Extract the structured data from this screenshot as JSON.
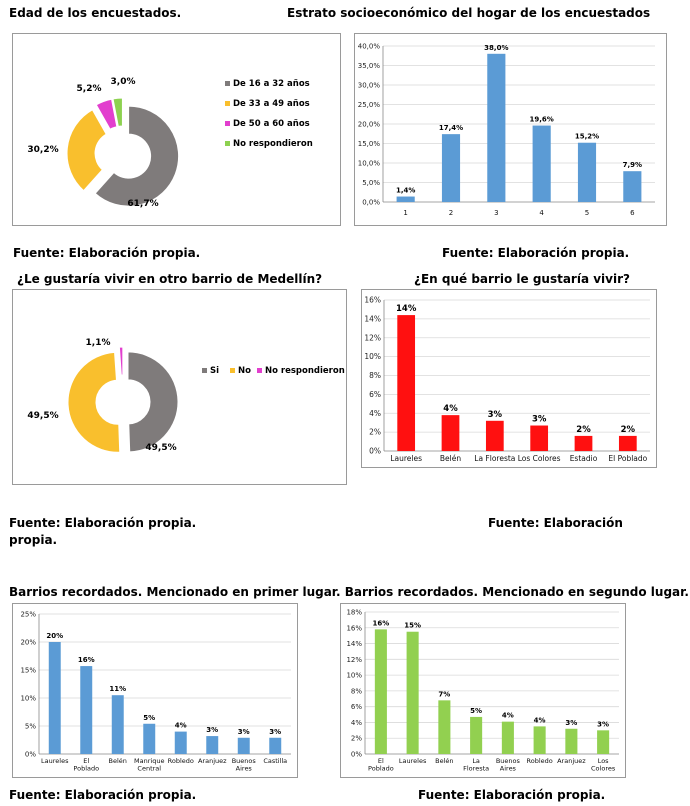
{
  "headings": {
    "edad": "Edad de los encuestados.",
    "estrato": "Estrato socioeconómico del hogar de los encuestados",
    "gustaria": "¿Le gustaría vivir en otro barrio de Medellín?",
    "que_barrio": "¿En qué barrio le gustaría vivir?",
    "recordados": "Barrios recordados. Mencionado en primer lugar. Barrios recordados. Mencionado en segundo lugar."
  },
  "fuentes": {
    "f1": "Fuente: Elaboración propia.",
    "f2": "Fuente: Elaboración propia.",
    "f3a": "Fuente: Elaboración propia.",
    "f3b": "propia.",
    "f4": "Fuente: Elaboración",
    "f5": "Fuente: Elaboración propia.",
    "f6": "Fuente: Elaboración propia."
  },
  "chart_data": [
    {
      "id": "edad",
      "type": "pie",
      "labels": [
        "De 16 a 32 años",
        "De 33 a 49 años",
        "De 50 a 60 años",
        "No respondieron"
      ],
      "values": [
        61.7,
        30.2,
        5.2,
        3.0
      ],
      "value_labels": [
        "61,7%",
        "30,2%",
        "5,2%",
        "3,0%"
      ],
      "colors": [
        "#7f7b7b",
        "#f9bf2d",
        "#e23fce",
        "#8dd150"
      ],
      "legend": "right"
    },
    {
      "id": "estrato",
      "type": "bar",
      "categories": [
        "1",
        "2",
        "3",
        "4",
        "5",
        "6"
      ],
      "values": [
        1.4,
        17.4,
        38.0,
        19.6,
        15.2,
        7.9
      ],
      "value_labels": [
        "1,4%",
        "17,4%",
        "38,0%",
        "19,6%",
        "15,2%",
        "7,9%"
      ],
      "yticks": [
        "0,0%",
        "5,0%",
        "10,0%",
        "15,0%",
        "20,0%",
        "25,0%",
        "30,0%",
        "35,0%",
        "40,0%"
      ],
      "ylim": [
        0,
        40
      ],
      "color": "#5b9bd5",
      "grid": true
    },
    {
      "id": "gustaria",
      "type": "pie",
      "labels": [
        "Si",
        "No",
        "No respondieron"
      ],
      "values": [
        49.5,
        49.5,
        1.1
      ],
      "value_labels": [
        "49,5%",
        "49,5%",
        "1,1%"
      ],
      "colors": [
        "#7f7b7b",
        "#f9bf2d",
        "#e23fce"
      ],
      "legend": "right"
    },
    {
      "id": "que_barrio",
      "type": "bar",
      "categories": [
        "Laureles",
        "Belén",
        "La Floresta",
        "Los Colores",
        "Estadio",
        "El Poblado"
      ],
      "values": [
        14.4,
        3.8,
        3.2,
        2.7,
        1.6,
        1.6
      ],
      "value_labels": [
        "14%",
        "4%",
        "3%",
        "3%",
        "2%",
        "2%"
      ],
      "yticks": [
        "0%",
        "2%",
        "4%",
        "6%",
        "8%",
        "10%",
        "12%",
        "14%",
        "16%"
      ],
      "ylim": [
        0,
        16
      ],
      "color": "#ff1010",
      "grid": true
    },
    {
      "id": "primer",
      "type": "bar",
      "categories": [
        "Laureles",
        "El Poblado",
        "Belén",
        "Manrique Central",
        "Robledo",
        "Aranjuez",
        "Buenos Aires",
        "Castilla"
      ],
      "values": [
        20.0,
        15.7,
        10.5,
        5.4,
        4.0,
        3.2,
        2.9,
        2.9
      ],
      "value_labels": [
        "20%",
        "16%",
        "11%",
        "5%",
        "4%",
        "3%",
        "3%",
        "3%"
      ],
      "yticks": [
        "0%",
        "5%",
        "10%",
        "15%",
        "20%",
        "25%"
      ],
      "ylim": [
        0,
        25
      ],
      "color": "#5b9bd5",
      "grid": true
    },
    {
      "id": "segundo",
      "type": "bar",
      "categories": [
        "El Poblado",
        "Laureles",
        "Belén",
        "La Floresta",
        "Buenos Aires",
        "Robledo",
        "Aranjuez",
        "Los Colores"
      ],
      "values": [
        15.8,
        15.5,
        6.8,
        4.7,
        4.1,
        3.5,
        3.2,
        3.0
      ],
      "value_labels": [
        "16%",
        "15%",
        "7%",
        "5%",
        "4%",
        "4%",
        "3%",
        "3%"
      ],
      "yticks": [
        "0%",
        "2%",
        "4%",
        "6%",
        "8%",
        "10%",
        "12%",
        "14%",
        "16%",
        "18%"
      ],
      "ylim": [
        0,
        18
      ],
      "color": "#92d050",
      "grid": true
    }
  ]
}
